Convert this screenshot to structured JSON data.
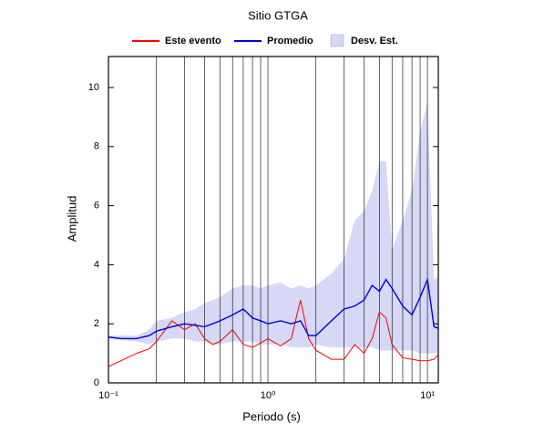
{
  "chart_data": {
    "type": "line",
    "title": "Sitio GTGA",
    "x_label": "Periodo (s)",
    "y_label": "Amplitud",
    "log_x": true,
    "x": [
      0.1,
      0.12,
      0.15,
      0.18,
      0.2,
      0.25,
      0.3,
      0.35,
      0.4,
      0.45,
      0.5,
      0.6,
      0.7,
      0.8,
      0.9,
      1.0,
      1.2,
      1.4,
      1.6,
      1.8,
      2,
      2.5,
      3,
      3.5,
      4,
      4.5,
      5,
      5.5,
      6,
      7,
      8,
      9,
      10,
      11,
      11.7
    ],
    "series": [
      {
        "name": "Este evento",
        "color": "#ff0000",
        "values": [
          0.55,
          0.75,
          1.0,
          1.15,
          1.4,
          2.1,
          1.8,
          2.0,
          1.5,
          1.3,
          1.4,
          1.8,
          1.3,
          1.2,
          1.35,
          1.5,
          1.25,
          1.5,
          2.8,
          1.5,
          1.1,
          0.8,
          0.8,
          1.3,
          1.0,
          1.5,
          2.4,
          2.2,
          1.3,
          0.85,
          0.8,
          0.75,
          0.75,
          0.8,
          0.95
        ]
      },
      {
        "name": "Promedio",
        "color": "#0000dd",
        "values": [
          1.55,
          1.5,
          1.5,
          1.6,
          1.75,
          1.9,
          2.0,
          1.95,
          1.9,
          2.0,
          2.1,
          2.3,
          2.5,
          2.2,
          2.1,
          2.0,
          2.1,
          2.0,
          2.1,
          1.6,
          1.6,
          2.1,
          2.5,
          2.6,
          2.8,
          3.3,
          3.1,
          3.5,
          3.2,
          2.6,
          2.3,
          2.9,
          3.5,
          1.9,
          1.85
        ]
      },
      {
        "name": "Desv. Est.",
        "color": "#d6d8f6",
        "upper": [
          1.6,
          1.6,
          1.6,
          1.8,
          2.1,
          2.2,
          2.4,
          2.5,
          2.7,
          2.8,
          2.9,
          3.2,
          3.3,
          3.3,
          3.2,
          3.3,
          3.4,
          3.2,
          3.3,
          3.2,
          3.3,
          3.7,
          4.2,
          5.5,
          5.8,
          6.5,
          7.5,
          7.5,
          4.5,
          5.5,
          6.5,
          8.5,
          9.5,
          3.5,
          3.6
        ],
        "lower": [
          1.5,
          1.45,
          1.4,
          1.3,
          1.4,
          1.5,
          1.5,
          1.4,
          1.4,
          1.3,
          1.3,
          1.4,
          1.4,
          1.4,
          1.3,
          1.3,
          1.3,
          1.2,
          1.2,
          1.2,
          1.3,
          1.2,
          1.2,
          1.2,
          1.2,
          1.2,
          1.1,
          1.1,
          1.1,
          1.1,
          1.1,
          1.0,
          1.0,
          1.0,
          1.0
        ]
      }
    ],
    "xlim": [
      0.1,
      11.7
    ],
    "ylim": [
      0,
      11.05
    ],
    "xticks": [
      {
        "value": 0.1,
        "label": "10⁻¹"
      },
      {
        "value": 1,
        "label": "10⁰"
      },
      {
        "value": 10,
        "label": "10¹"
      }
    ],
    "x_grid": [
      0.2,
      0.3,
      0.4,
      0.5,
      0.6,
      0.7,
      0.8,
      0.9,
      2,
      3,
      4,
      5,
      6,
      7,
      8,
      9
    ],
    "yticks": [
      0,
      2,
      4,
      6,
      8,
      10
    ]
  }
}
